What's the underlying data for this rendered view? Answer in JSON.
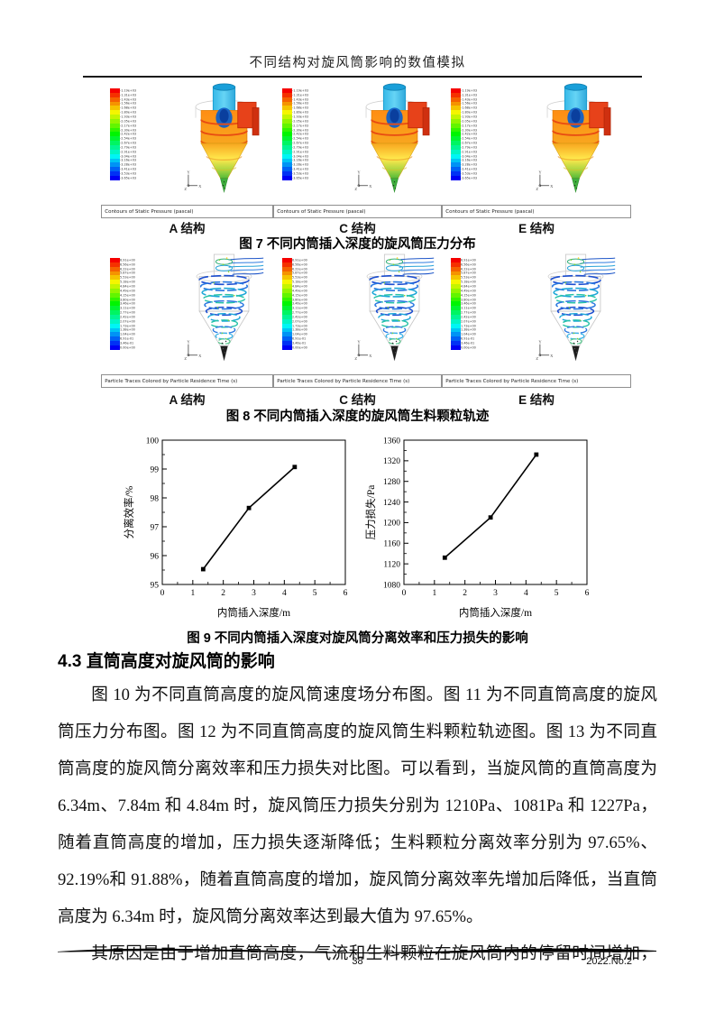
{
  "page": {
    "header_title": "不同结构对旋风筒影响的数值模拟",
    "footer": {
      "page_number": "38",
      "issue": "2022.No.2"
    }
  },
  "figure7": {
    "caption": "图 7 不同内筒插入深度的旋风筒压力分布",
    "panels": [
      {
        "structure_label": "A 结构",
        "footer_label": "Contours of Static Pressure (pascal)"
      },
      {
        "structure_label": "C 结构",
        "footer_label": "Contours of Static Pressure (pascal)"
      },
      {
        "structure_label": "E 结构",
        "footer_label": "Contours of Static Pressure (pascal)"
      }
    ],
    "legend_values": [
      "-1.19e+03",
      "-1.31e+03",
      "-1.43e+03",
      "-1.56e+03",
      "-1.68e+03",
      "-1.80e+03",
      "-1.93e+03",
      "-2.05e+03",
      "-2.17e+03",
      "-2.30e+03",
      "-2.42e+03",
      "-2.54e+03",
      "-2.67e+03",
      "-2.79e+03",
      "-2.91e+03",
      "-3.04e+03",
      "-3.16e+03",
      "-3.28e+03",
      "-3.41e+03",
      "-3.53e+03",
      "-3.65e+03"
    ]
  },
  "figure8": {
    "caption": "图 8 不同内筒插入深度的旋风筒生料颗粒轨迹",
    "panels": [
      {
        "structure_label": "A 结构",
        "footer_label": "Particle Traces Colored by Particle Residence Time (s)"
      },
      {
        "structure_label": "C 结构",
        "footer_label": "Particle Traces Colored by Particle Residence Time (s)"
      },
      {
        "structure_label": "E 结构",
        "footer_label": "Particle Traces Colored by Particle Residence Time (s)"
      }
    ],
    "legend_values": [
      "6.91e+00",
      "6.56e+00",
      "6.22e+00",
      "5.87e+00",
      "5.53e+00",
      "5.18e+00",
      "4.84e+00",
      "4.49e+00",
      "4.15e+00",
      "3.80e+00",
      "3.46e+00",
      "3.11e+00",
      "2.77e+00",
      "2.42e+00",
      "2.07e+00",
      "1.73e+00",
      "1.38e+00",
      "1.04e+00",
      "6.91e-01",
      "3.46e-01",
      "0.00e+00"
    ]
  },
  "figure9": {
    "caption": "图 9 不同内筒插入深度对旋风筒分离效率和压力损失的影响"
  },
  "chart_data": [
    {
      "type": "line",
      "title": "",
      "xlabel": "内筒插入深度/m",
      "ylabel": "分离效率/%",
      "xlim": [
        0,
        6
      ],
      "ylim": [
        95,
        100
      ],
      "xticks": [
        0,
        1,
        2,
        3,
        4,
        5,
        6
      ],
      "yticks": [
        95,
        96,
        97,
        98,
        99,
        100
      ],
      "xminor": 0.5,
      "yminor": 0.5,
      "grid": false,
      "legend_position": "none",
      "points": [
        [
          1.34,
          95.53
        ],
        [
          2.84,
          97.65
        ],
        [
          4.34,
          99.07
        ]
      ]
    },
    {
      "type": "line",
      "title": "",
      "xlabel": "内筒插入深度/m",
      "ylabel": "压力损失/Pa",
      "xlim": [
        0,
        6
      ],
      "ylim": [
        1080,
        1360
      ],
      "xticks": [
        0,
        1,
        2,
        3,
        4,
        5,
        6
      ],
      "yticks": [
        1080,
        1120,
        1160,
        1200,
        1240,
        1280,
        1320,
        1360
      ],
      "xminor": 0.5,
      "yminor": 20,
      "grid": false,
      "legend_position": "none",
      "points": [
        [
          1.34,
          1132
        ],
        [
          2.84,
          1210
        ],
        [
          4.34,
          1332
        ]
      ]
    }
  ],
  "section": {
    "heading": "4.3 直筒高度对旋风筒的影响",
    "paragraph1_lines": [
      "图 10 为不同直筒高度的旋风筒速度场分布图。图 11 为不同直筒高度的旋风",
      "筒压力分布图。图 12 为不同直筒高度的旋风筒生料颗粒轨迹图。图 13 为不同直",
      "筒高度的旋风筒分离效率和压力损失对比图。可以看到，当旋风筒的直筒高度为",
      "6.34m、7.84m 和 4.84m 时，旋风筒压力损失分别为 1210Pa、1081Pa 和 1227Pa，",
      "随着直筒高度的增加，压力损失逐渐降低；生料颗粒分离效率分别为 97.65%、",
      "92.19%和 91.88%，随着直筒高度的增加，旋风筒分离效率先增加后降低，当直筒",
      "高度为 6.34m 时，旋风筒分离效率达到最大值为 97.65%。"
    ],
    "paragraph2_lines": [
      "其原因是由于增加直筒高度，气流和生料颗粒在旋风筒内的停留时间增加，"
    ]
  }
}
